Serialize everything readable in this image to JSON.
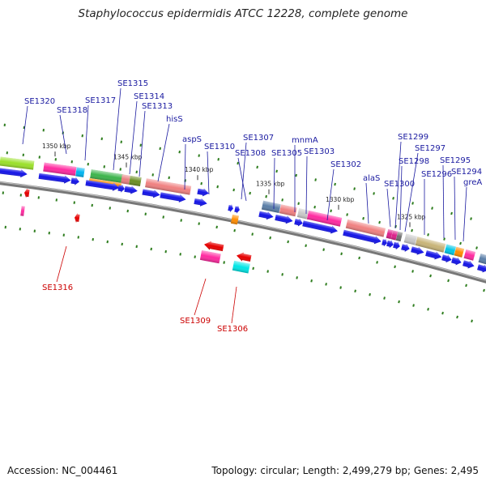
{
  "title": "Staphylococcus epidermidis ATCC 12228, complete genome",
  "footer": {
    "accession": "Accession: NC_004461",
    "summary": "Topology: circular; Length: 2,499,279 bp; Genes: 2,495"
  },
  "scale_ticks": [
    "1350 kbp",
    "1345 kbp",
    "1340 kbp",
    "1335 kbp",
    "1330 kbp",
    "1325 kbp"
  ],
  "gene_labels_forward": [
    "SE1320",
    "SE1318",
    "SE1317",
    "SE1315",
    "SE1314",
    "SE1313",
    "hisS",
    "aspS",
    "SE1310",
    "SE1307",
    "SE1308",
    "SE1305",
    "mnmA",
    "SE1303",
    "SE1302",
    "alaS",
    "SE1300",
    "SE1299",
    "SE1298",
    "SE1297",
    "SE1296",
    "SE1295",
    "SE1294",
    "greA"
  ],
  "gene_labels_reverse": [
    "SE1316",
    "SE1309",
    "SE1306"
  ],
  "colors": {
    "forward_label": "#1a1aa0",
    "reverse_label": "#cc0000",
    "backbone": "#777777",
    "orf_blue": "#1414e6",
    "orf_red": "#e60000",
    "tick_green": "#2e7d1e"
  }
}
